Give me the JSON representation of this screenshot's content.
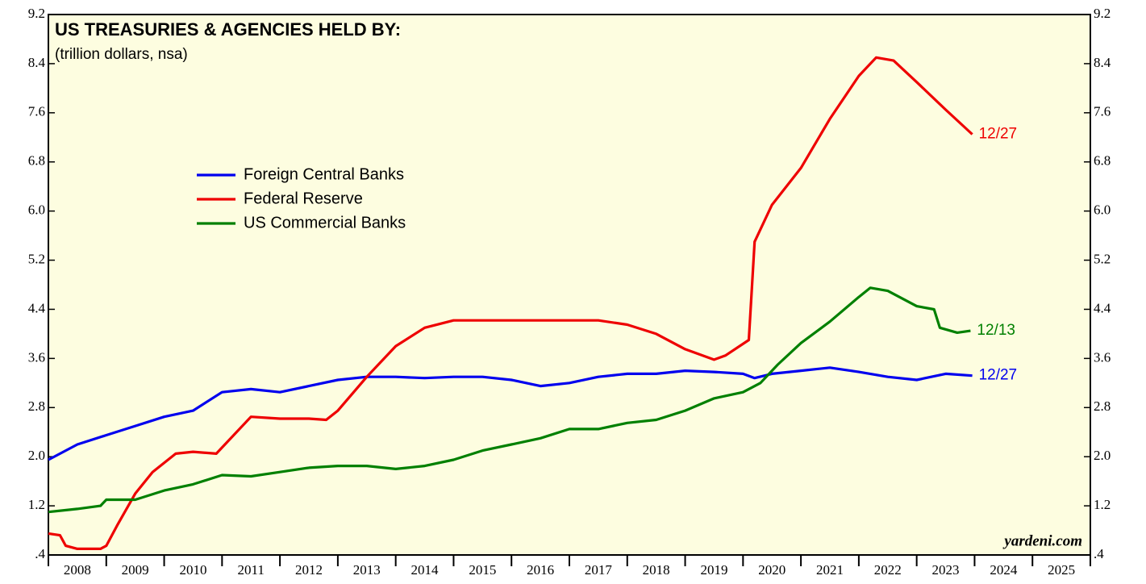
{
  "chart_data": {
    "type": "line",
    "title": "US TREASURIES & AGENCIES HELD BY:",
    "subtitle": "(trillion dollars, nsa)",
    "watermark": "yardeni.com",
    "xlim": [
      2008,
      2026
    ],
    "xticks": [
      2008,
      2009,
      2010,
      2011,
      2012,
      2013,
      2014,
      2015,
      2016,
      2017,
      2018,
      2019,
      2020,
      2021,
      2022,
      2023,
      2024,
      2025,
      2026
    ],
    "x_labels": [
      "2008",
      "2009",
      "2010",
      "2011",
      "2012",
      "2013",
      "2014",
      "2015",
      "2016",
      "2017",
      "2018",
      "2019",
      "2020",
      "2021",
      "2022",
      "2023",
      "2024",
      "2025"
    ],
    "ylim": [
      0.4,
      9.2
    ],
    "yticks": [
      9.2,
      8.4,
      7.6,
      6.8,
      {
        "value": 6,
        "label": "6.0"
      },
      5.2,
      4.4,
      3.6,
      2.8,
      {
        "value": 2,
        "label": "2.0"
      },
      1.2,
      {
        "value": 0.4,
        "label": ".4"
      }
    ],
    "series": [
      {
        "name": "Foreign Central Banks",
        "color": "#0000ee",
        "end_label": "12/27",
        "x": [
          2008.0,
          2008.5,
          2009.0,
          2009.5,
          2010.0,
          2010.5,
          2011.0,
          2011.5,
          2012.0,
          2012.5,
          2013.0,
          2013.5,
          2014.0,
          2014.5,
          2015.0,
          2015.5,
          2016.0,
          2016.5,
          2017.0,
          2017.5,
          2018.0,
          2018.5,
          2019.0,
          2019.5,
          2020.0,
          2020.2,
          2020.5,
          2021.0,
          2021.5,
          2022.0,
          2022.5,
          2023.0,
          2023.5,
          2023.96
        ],
        "values": [
          1.95,
          2.2,
          2.35,
          2.5,
          2.65,
          2.75,
          3.05,
          3.1,
          3.05,
          3.15,
          3.25,
          3.3,
          3.3,
          3.28,
          3.3,
          3.3,
          3.25,
          3.15,
          3.2,
          3.3,
          3.35,
          3.35,
          3.4,
          3.38,
          3.35,
          3.28,
          3.35,
          3.4,
          3.45,
          3.38,
          3.3,
          3.25,
          3.35,
          3.32
        ]
      },
      {
        "name": "Federal Reserve",
        "color": "#ee0000",
        "end_label": "12/27",
        "x": [
          2008.0,
          2008.2,
          2008.3,
          2008.5,
          2008.9,
          2009.0,
          2009.2,
          2009.5,
          2009.8,
          2010.2,
          2010.5,
          2010.9,
          2011.5,
          2012.0,
          2012.5,
          2012.8,
          2013.0,
          2013.5,
          2014.0,
          2014.5,
          2015.0,
          2016.0,
          2017.0,
          2017.5,
          2018.0,
          2018.5,
          2019.0,
          2019.5,
          2019.7,
          2020.1,
          2020.2,
          2020.5,
          2021.0,
          2021.5,
          2022.0,
          2022.3,
          2022.6,
          2023.0,
          2023.5,
          2023.96
        ],
        "values": [
          0.75,
          0.72,
          0.55,
          0.5,
          0.5,
          0.55,
          0.9,
          1.4,
          1.75,
          2.05,
          2.08,
          2.05,
          2.65,
          2.62,
          2.62,
          2.6,
          2.75,
          3.3,
          3.8,
          4.1,
          4.22,
          4.22,
          4.22,
          4.22,
          4.15,
          4.0,
          3.75,
          3.58,
          3.65,
          3.9,
          5.5,
          6.1,
          6.7,
          7.5,
          8.2,
          8.5,
          8.45,
          8.1,
          7.65,
          7.25
        ]
      },
      {
        "name": "US Commercial Banks",
        "color": "#008000",
        "end_label": "12/13",
        "x": [
          2008.0,
          2008.5,
          2008.9,
          2009.0,
          2009.5,
          2010.0,
          2010.5,
          2011.0,
          2011.5,
          2012.0,
          2012.5,
          2013.0,
          2013.5,
          2014.0,
          2014.5,
          2015.0,
          2015.5,
          2016.0,
          2016.5,
          2017.0,
          2017.5,
          2018.0,
          2018.5,
          2019.0,
          2019.5,
          2020.0,
          2020.3,
          2020.6,
          2021.0,
          2021.5,
          2022.0,
          2022.2,
          2022.5,
          2023.0,
          2023.3,
          2023.4,
          2023.7,
          2023.93
        ],
        "values": [
          1.1,
          1.15,
          1.2,
          1.3,
          1.3,
          1.45,
          1.55,
          1.7,
          1.68,
          1.75,
          1.82,
          1.85,
          1.85,
          1.8,
          1.85,
          1.95,
          2.1,
          2.2,
          2.3,
          2.45,
          2.45,
          2.55,
          2.6,
          2.75,
          2.95,
          3.05,
          3.2,
          3.5,
          3.85,
          4.2,
          4.6,
          4.75,
          4.7,
          4.45,
          4.4,
          4.1,
          4.02,
          4.05
        ]
      }
    ]
  }
}
